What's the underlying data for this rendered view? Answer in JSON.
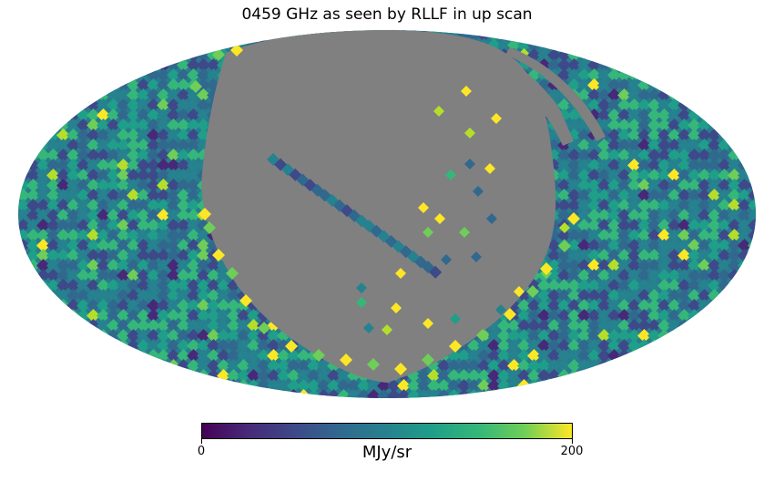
{
  "title": "0459 GHz as seen by RLLF in up scan",
  "map": {
    "projection": "mollweide",
    "masked_color": "#808080",
    "colormap": "viridis"
  },
  "colorbar": {
    "min_label": "0",
    "max_label": "200",
    "unit": "MJy/sr",
    "min": 0,
    "max": 200
  }
}
